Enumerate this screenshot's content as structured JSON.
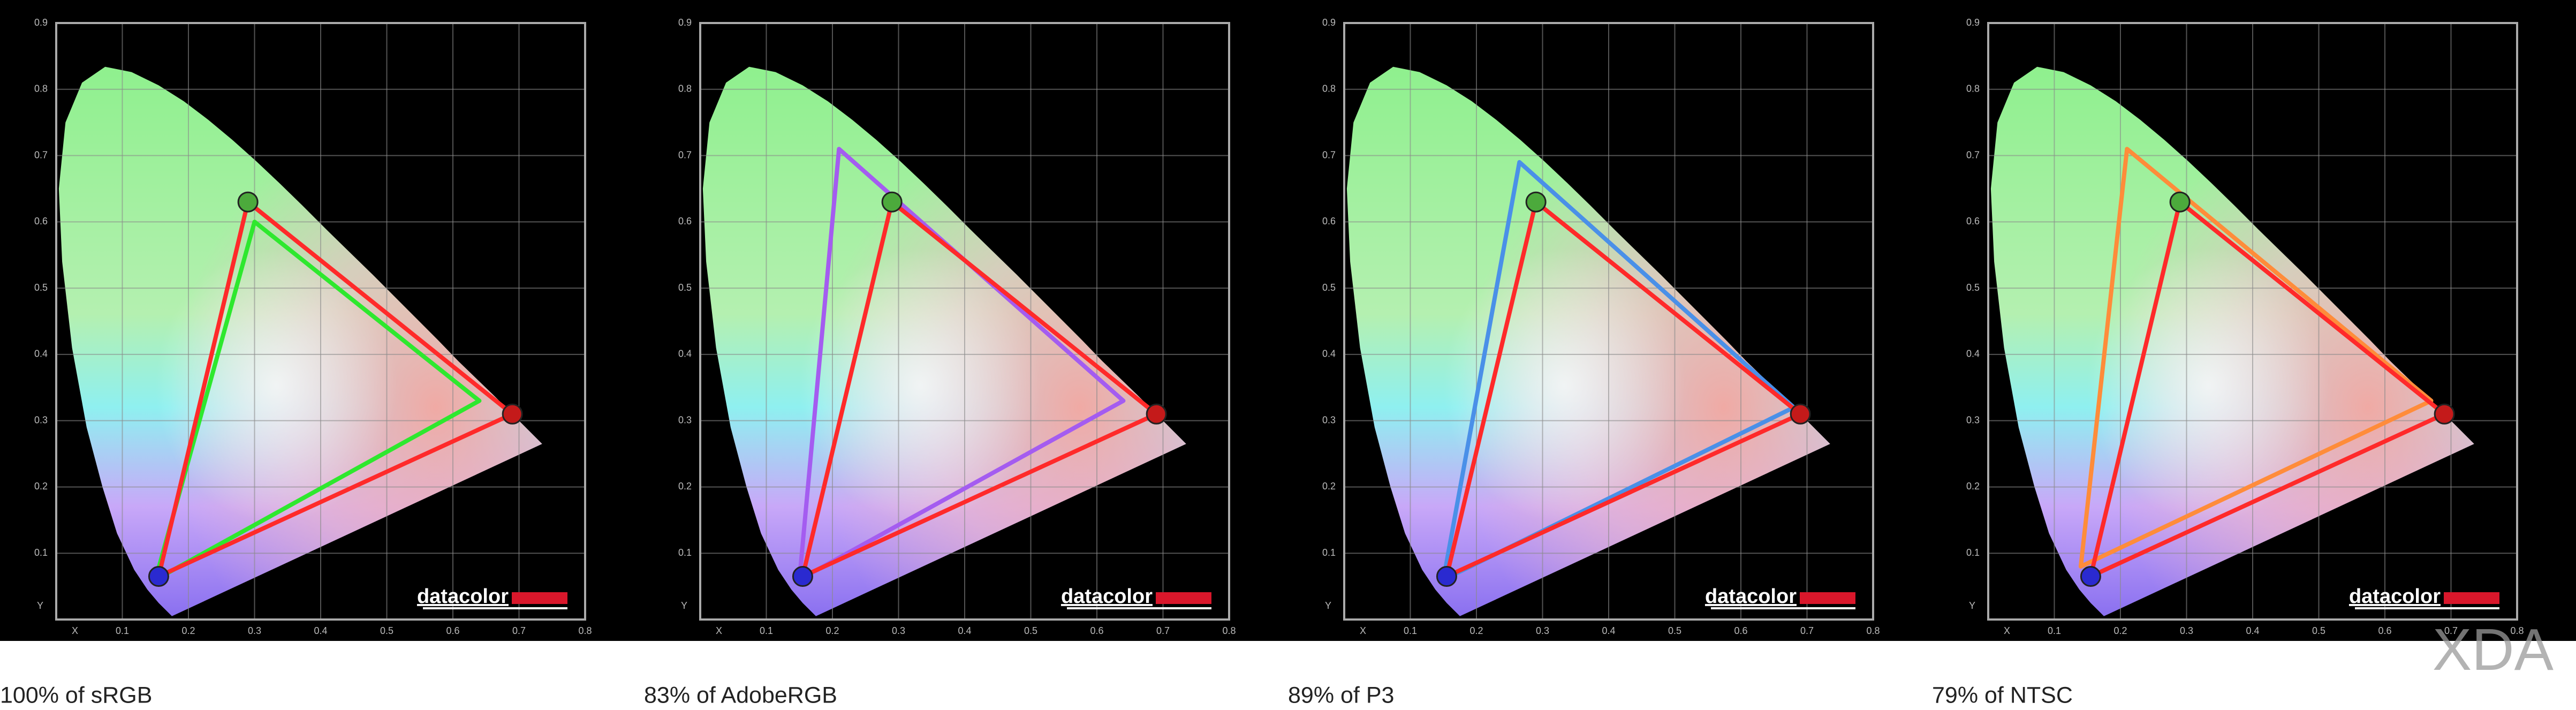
{
  "chart_data": [
    {
      "type": "gamut",
      "title": "100% of sRGB",
      "xlabel": "X",
      "ylabel": "Y",
      "brand": "datacolor",
      "xlim": [
        0,
        0.8
      ],
      "ylim": [
        0,
        0.9
      ],
      "xticks": [
        0.1,
        0.2,
        0.3,
        0.4,
        0.5,
        0.6,
        0.7,
        0.8
      ],
      "yticks": [
        0.1,
        0.2,
        0.3,
        0.4,
        0.5,
        0.6,
        0.7,
        0.8,
        0.9
      ],
      "grid": true,
      "series": [
        {
          "color": "#ff2a2a",
          "x": [
            0.69,
            0.29,
            0.155
          ],
          "y": [
            0.31,
            0.63,
            0.065
          ],
          "marker_colors": [
            "#c41a1a",
            "#4caa3c",
            "#2a2ad0"
          ]
        },
        {
          "color": "#2ee82e",
          "x": [
            0.64,
            0.3,
            0.15
          ],
          "y": [
            0.33,
            0.6,
            0.06
          ]
        }
      ]
    },
    {
      "type": "gamut",
      "title": "83% of AdobeRGB",
      "xlabel": "X",
      "ylabel": "Y",
      "brand": "datacolor",
      "xlim": [
        0,
        0.8
      ],
      "ylim": [
        0,
        0.9
      ],
      "xticks": [
        0.1,
        0.2,
        0.3,
        0.4,
        0.5,
        0.6,
        0.7,
        0.8
      ],
      "yticks": [
        0.1,
        0.2,
        0.3,
        0.4,
        0.5,
        0.6,
        0.7,
        0.8,
        0.9
      ],
      "grid": true,
      "series": [
        {
          "color": "#ff2a2a",
          "x": [
            0.69,
            0.29,
            0.155
          ],
          "y": [
            0.31,
            0.63,
            0.065
          ],
          "marker_colors": [
            "#c41a1a",
            "#4caa3c",
            "#2a2ad0"
          ]
        },
        {
          "color": "#a45cf0",
          "x": [
            0.64,
            0.21,
            0.15
          ],
          "y": [
            0.33,
            0.71,
            0.06
          ]
        }
      ]
    },
    {
      "type": "gamut",
      "title": "89% of P3",
      "xlabel": "X",
      "ylabel": "Y",
      "brand": "datacolor",
      "xlim": [
        0,
        0.8
      ],
      "ylim": [
        0,
        0.9
      ],
      "xticks": [
        0.1,
        0.2,
        0.3,
        0.4,
        0.5,
        0.6,
        0.7,
        0.8
      ],
      "yticks": [
        0.1,
        0.2,
        0.3,
        0.4,
        0.5,
        0.6,
        0.7,
        0.8,
        0.9
      ],
      "grid": true,
      "series": [
        {
          "color": "#ff2a2a",
          "x": [
            0.69,
            0.29,
            0.155
          ],
          "y": [
            0.31,
            0.63,
            0.065
          ],
          "marker_colors": [
            "#c41a1a",
            "#4caa3c",
            "#2a2ad0"
          ]
        },
        {
          "color": "#4a90e8",
          "x": [
            0.68,
            0.265,
            0.15
          ],
          "y": [
            0.32,
            0.69,
            0.06
          ]
        }
      ]
    },
    {
      "type": "gamut",
      "title": "79% of NTSC",
      "xlabel": "X",
      "ylabel": "Y",
      "brand": "datacolor",
      "xlim": [
        0,
        0.8
      ],
      "ylim": [
        0,
        0.9
      ],
      "xticks": [
        0.1,
        0.2,
        0.3,
        0.4,
        0.5,
        0.6,
        0.7,
        0.8
      ],
      "yticks": [
        0.1,
        0.2,
        0.3,
        0.4,
        0.5,
        0.6,
        0.7,
        0.8,
        0.9
      ],
      "grid": true,
      "series": [
        {
          "color": "#ff2a2a",
          "x": [
            0.69,
            0.29,
            0.155
          ],
          "y": [
            0.31,
            0.63,
            0.065
          ],
          "marker_colors": [
            "#c41a1a",
            "#4caa3c",
            "#2a2ad0"
          ]
        },
        {
          "color": "#ff8c3a",
          "x": [
            0.67,
            0.21,
            0.14
          ],
          "y": [
            0.33,
            0.71,
            0.08
          ]
        }
      ]
    }
  ],
  "watermark": "XDA"
}
